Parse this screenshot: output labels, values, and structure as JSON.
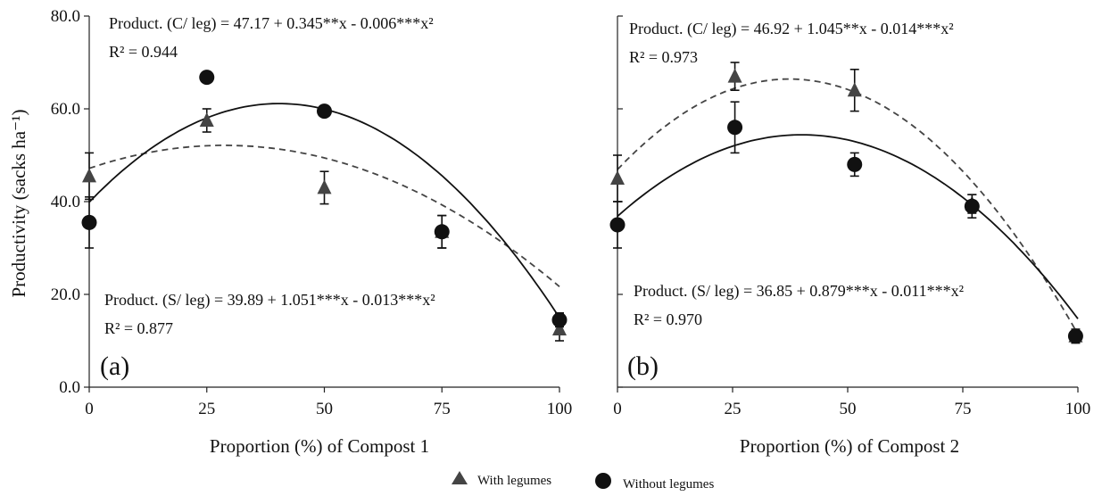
{
  "y_axis_label": "Productivity (sacks ha⁻¹)",
  "colors": {
    "axis": "#222222",
    "with": "#444444",
    "without": "#111111"
  },
  "legend": {
    "placement": "bottom-center",
    "items": [
      {
        "label": "With legumes",
        "marker": "triangle"
      },
      {
        "label": "Without legumes",
        "marker": "circle"
      }
    ]
  },
  "chart_data": [
    {
      "type": "scatter",
      "panel_label": "(a)",
      "xlabel": "Proportion (%) of Compost 1",
      "ylabel": "Productivity (sacks ha⁻¹)",
      "xlim": [
        0,
        100
      ],
      "ylim": [
        0,
        80
      ],
      "xticks": [
        "0",
        "25",
        "50",
        "75",
        "100"
      ],
      "yticks": [
        "0.0",
        "20.0",
        "40.0",
        "60.0",
        "80.0"
      ],
      "grid": false,
      "equations": [
        {
          "series": "with",
          "text": "Product. (C/ leg) = 47.17 + 0.345**x - 0.006***x²",
          "r2": "R² = 0.944",
          "position": "top-left"
        },
        {
          "series": "without",
          "text": "Product. (S/ leg) = 39.89 + 1.051***x - 0.013***x²",
          "r2": "R² = 0.877",
          "position": "lower-left"
        }
      ],
      "series": [
        {
          "key": "with",
          "marker": "triangle",
          "line": "dashed",
          "x": [
            0,
            25,
            50,
            75,
            100
          ],
          "y": [
            45.5,
            57.5,
            43,
            33.5,
            12.5
          ],
          "err": [
            5,
            2.5,
            3.5,
            3.5,
            2.5
          ],
          "fit": [
            47.17,
            0.345,
            -0.006
          ]
        },
        {
          "key": "without",
          "marker": "circle",
          "line": "solid",
          "x": [
            0,
            25,
            50,
            75,
            100
          ],
          "y": [
            35.5,
            66.8,
            59.5,
            33.5,
            14.5
          ],
          "err": [
            5.5,
            0,
            1,
            3.5,
            1.5
          ],
          "fit": [
            39.89,
            1.051,
            -0.013
          ]
        }
      ]
    },
    {
      "type": "scatter",
      "panel_label": "(b)",
      "xlabel": "Proportion (%) of Compost 2",
      "ylabel": "",
      "xlim": [
        0,
        100
      ],
      "ylim": [
        0,
        80
      ],
      "xticks": [
        "0",
        "25",
        "50",
        "75",
        "100"
      ],
      "yticks": [],
      "grid": false,
      "equations": [
        {
          "series": "with",
          "text": "Product. (C/ leg) = 46.92 + 1.045**x - 0.014***x²",
          "r2": "R² = 0.973",
          "position": "top-left"
        },
        {
          "series": "without",
          "text": "Product. (S/ leg) = 36.85 + 0.879***x - 0.011***x²",
          "r2": "R² = 0.970",
          "position": "lower-left"
        }
      ],
      "series": [
        {
          "key": "with",
          "marker": "triangle",
          "line": "dashed",
          "x": [
            0,
            25.5,
            51.5,
            77,
            99.5
          ],
          "y": [
            45,
            67,
            64,
            39.5,
            11
          ],
          "err": [
            5,
            3,
            4.5,
            2,
            1.5
          ],
          "fit": [
            46.92,
            1.045,
            -0.014
          ]
        },
        {
          "key": "without",
          "marker": "circle",
          "line": "solid",
          "x": [
            0,
            25.5,
            51.5,
            77,
            99.5
          ],
          "y": [
            35,
            56,
            48,
            39,
            11
          ],
          "err": [
            5,
            5.5,
            2.5,
            2.5,
            1
          ],
          "fit": [
            36.85,
            0.879,
            -0.011
          ]
        }
      ]
    }
  ]
}
